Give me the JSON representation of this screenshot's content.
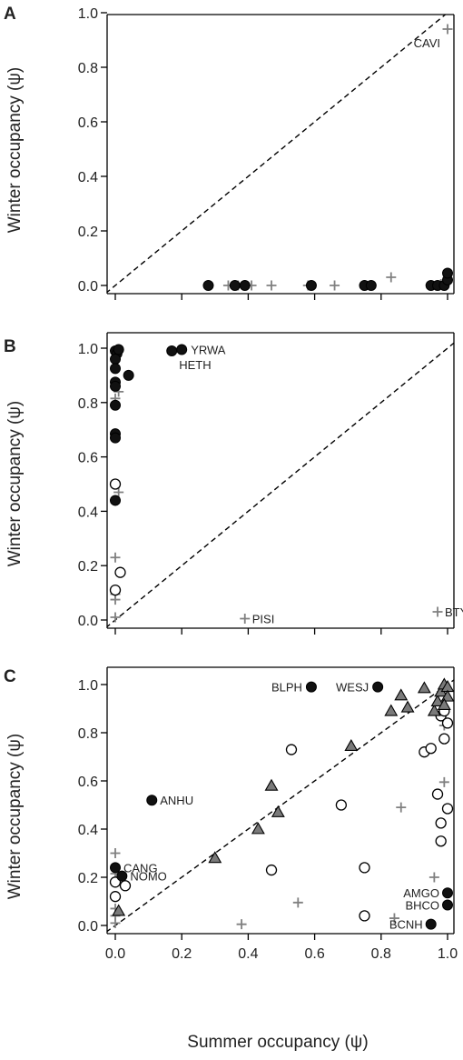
{
  "x_axis_label": "Summer occupancy (ψ)",
  "chart_data": [
    {
      "type": "scatter",
      "panel": "A",
      "xlabel": "",
      "ylabel": "Winter occupancy (ψ)",
      "xlim": [
        0,
        1
      ],
      "ylim": [
        0,
        1
      ],
      "xticks": [],
      "yticks": [
        "0.0",
        "0.2",
        "0.4",
        "0.6",
        "0.8",
        "1.0"
      ],
      "reference_line": "y = x (dashed)",
      "points": [
        {
          "x": 0.28,
          "y": 0.0,
          "m": "filled"
        },
        {
          "x": 0.36,
          "y": 0.0,
          "m": "filled"
        },
        {
          "x": 0.39,
          "y": 0.0,
          "m": "filled"
        },
        {
          "x": 0.59,
          "y": 0.0,
          "m": "filled"
        },
        {
          "x": 0.75,
          "y": 0.0,
          "m": "filled"
        },
        {
          "x": 0.77,
          "y": 0.0,
          "m": "filled"
        },
        {
          "x": 0.95,
          "y": 0.0,
          "m": "filled"
        },
        {
          "x": 0.97,
          "y": 0.0,
          "m": "filled"
        },
        {
          "x": 0.99,
          "y": 0.0,
          "m": "filled"
        },
        {
          "x": 1.0,
          "y": 0.02,
          "m": "filled"
        },
        {
          "x": 1.0,
          "y": 0.045,
          "m": "filled"
        },
        {
          "x": 0.34,
          "y": 0.0,
          "m": "cross"
        },
        {
          "x": 0.37,
          "y": 0.0,
          "m": "cross"
        },
        {
          "x": 0.41,
          "y": 0.0,
          "m": "cross"
        },
        {
          "x": 0.47,
          "y": 0.0,
          "m": "cross"
        },
        {
          "x": 0.58,
          "y": 0.0,
          "m": "cross"
        },
        {
          "x": 0.66,
          "y": 0.0,
          "m": "cross"
        },
        {
          "x": 0.83,
          "y": 0.03,
          "m": "cross"
        },
        {
          "x": 0.98,
          "y": 0.005,
          "m": "cross"
        },
        {
          "x": 1.0,
          "y": 0.94,
          "m": "cross",
          "label": "CAVI",
          "la": "end",
          "ldx": -8,
          "ldy": 20
        }
      ]
    },
    {
      "type": "scatter",
      "panel": "B",
      "xlabel": "",
      "ylabel": "Winter occupancy (ψ)",
      "xlim": [
        0,
        1
      ],
      "ylim": [
        0,
        1
      ],
      "xticks": [],
      "yticks": [
        "0.0",
        "0.2",
        "0.4",
        "0.6",
        "0.8",
        "1.0"
      ],
      "reference_line": "y = x (dashed)",
      "points": [
        {
          "x": 0.0,
          "y": 0.99,
          "m": "filled"
        },
        {
          "x": 0.005,
          "y": 0.98,
          "m": "filled"
        },
        {
          "x": 0.01,
          "y": 0.995,
          "m": "filled"
        },
        {
          "x": 0.0,
          "y": 0.96,
          "m": "filled"
        },
        {
          "x": 0.0,
          "y": 0.925,
          "m": "filled"
        },
        {
          "x": 0.0,
          "y": 0.875,
          "m": "filled"
        },
        {
          "x": 0.0,
          "y": 0.86,
          "m": "filled"
        },
        {
          "x": 0.04,
          "y": 0.9,
          "m": "filled"
        },
        {
          "x": 0.0,
          "y": 0.79,
          "m": "filled"
        },
        {
          "x": 0.0,
          "y": 0.685,
          "m": "filled"
        },
        {
          "x": 0.0,
          "y": 0.67,
          "m": "filled"
        },
        {
          "x": 0.0,
          "y": 0.44,
          "m": "filled"
        },
        {
          "x": 0.17,
          "y": 0.99,
          "m": "filled",
          "label": "HETH",
          "la": "start",
          "ldx": 8,
          "ldy": 20
        },
        {
          "x": 0.2,
          "y": 0.995,
          "m": "filled",
          "label": "YRWA",
          "la": "start",
          "ldx": 10,
          "ldy": 5
        },
        {
          "x": 0.0,
          "y": 0.5,
          "m": "open"
        },
        {
          "x": 0.0,
          "y": 0.11,
          "m": "open"
        },
        {
          "x": 0.015,
          "y": 0.175,
          "m": "open"
        },
        {
          "x": 0.01,
          "y": 0.84,
          "m": "cross"
        },
        {
          "x": 0.0,
          "y": 0.815,
          "m": "cross"
        },
        {
          "x": 0.01,
          "y": 0.47,
          "m": "cross"
        },
        {
          "x": 0.0,
          "y": 0.23,
          "m": "cross"
        },
        {
          "x": 0.0,
          "y": 0.095,
          "m": "cross"
        },
        {
          "x": 0.0,
          "y": 0.075,
          "m": "cross"
        },
        {
          "x": 0.0,
          "y": 0.01,
          "m": "cross"
        },
        {
          "x": 0.39,
          "y": 0.005,
          "m": "cross",
          "label": "PISI",
          "la": "start",
          "ldx": 8,
          "ldy": 5
        },
        {
          "x": 0.97,
          "y": 0.03,
          "m": "cross",
          "label": "BTYW",
          "la": "start",
          "ldx": 8,
          "ldy": 5
        }
      ]
    },
    {
      "type": "scatter",
      "panel": "C",
      "xlabel": "Summer occupancy (ψ)",
      "ylabel": "Winter occupancy (ψ)",
      "xlim": [
        0,
        1
      ],
      "ylim": [
        0,
        1
      ],
      "xticks": [
        "0.0",
        "0.2",
        "0.4",
        "0.6",
        "0.8",
        "1.0"
      ],
      "yticks": [
        "0.0",
        "0.2",
        "0.4",
        "0.6",
        "0.8",
        "1.0"
      ],
      "reference_line": "y = x (dashed)",
      "points": [
        {
          "x": 0.59,
          "y": 0.99,
          "m": "filled",
          "label": "BLPH",
          "la": "end",
          "ldx": -10,
          "ldy": 5
        },
        {
          "x": 0.79,
          "y": 0.99,
          "m": "filled",
          "label": "WESJ",
          "la": "end",
          "ldx": -10,
          "ldy": 5
        },
        {
          "x": 0.11,
          "y": 0.52,
          "m": "filled",
          "label": "ANHU",
          "la": "start",
          "ldx": 9,
          "ldy": 5
        },
        {
          "x": 0.0,
          "y": 0.24,
          "m": "filled",
          "label": "CANG",
          "la": "start",
          "ldx": 9,
          "ldy": 5
        },
        {
          "x": 0.02,
          "y": 0.205,
          "m": "filled",
          "label": "NOMO",
          "la": "start",
          "ldx": 9,
          "ldy": 5
        },
        {
          "x": 1.0,
          "y": 0.135,
          "m": "filled",
          "label": "AMGO",
          "la": "end",
          "ldx": -9,
          "ldy": 5
        },
        {
          "x": 1.0,
          "y": 0.085,
          "m": "filled",
          "label": "BHCO",
          "la": "end",
          "ldx": -9,
          "ldy": 5
        },
        {
          "x": 0.95,
          "y": 0.005,
          "m": "filled",
          "label": "BCNH",
          "la": "end",
          "ldx": -9,
          "ldy": 5
        },
        {
          "x": 0.53,
          "y": 0.73,
          "m": "open"
        },
        {
          "x": 0.68,
          "y": 0.5,
          "m": "open"
        },
        {
          "x": 0.47,
          "y": 0.23,
          "m": "open"
        },
        {
          "x": 0.75,
          "y": 0.24,
          "m": "open"
        },
        {
          "x": 0.75,
          "y": 0.04,
          "m": "open"
        },
        {
          "x": 0.93,
          "y": 0.72,
          "m": "open"
        },
        {
          "x": 0.95,
          "y": 0.735,
          "m": "open"
        },
        {
          "x": 0.99,
          "y": 0.775,
          "m": "open"
        },
        {
          "x": 0.97,
          "y": 0.545,
          "m": "open"
        },
        {
          "x": 1.0,
          "y": 0.485,
          "m": "open"
        },
        {
          "x": 0.98,
          "y": 0.425,
          "m": "open"
        },
        {
          "x": 0.98,
          "y": 0.35,
          "m": "open"
        },
        {
          "x": 0.98,
          "y": 0.87,
          "m": "open"
        },
        {
          "x": 0.99,
          "y": 0.89,
          "m": "open"
        },
        {
          "x": 1.0,
          "y": 0.84,
          "m": "open"
        },
        {
          "x": 0.0,
          "y": 0.18,
          "m": "open"
        },
        {
          "x": 0.03,
          "y": 0.165,
          "m": "open"
        },
        {
          "x": 0.0,
          "y": 0.12,
          "m": "open"
        },
        {
          "x": 0.01,
          "y": 0.06,
          "m": "triangle"
        },
        {
          "x": 0.3,
          "y": 0.28,
          "m": "triangle"
        },
        {
          "x": 0.43,
          "y": 0.4,
          "m": "triangle"
        },
        {
          "x": 0.47,
          "y": 0.58,
          "m": "triangle"
        },
        {
          "x": 0.49,
          "y": 0.47,
          "m": "triangle"
        },
        {
          "x": 0.71,
          "y": 0.745,
          "m": "triangle"
        },
        {
          "x": 0.83,
          "y": 0.89,
          "m": "triangle"
        },
        {
          "x": 0.86,
          "y": 0.955,
          "m": "triangle"
        },
        {
          "x": 0.88,
          "y": 0.905,
          "m": "triangle"
        },
        {
          "x": 0.93,
          "y": 0.985,
          "m": "triangle"
        },
        {
          "x": 0.96,
          "y": 0.89,
          "m": "triangle"
        },
        {
          "x": 0.97,
          "y": 0.93,
          "m": "triangle"
        },
        {
          "x": 0.98,
          "y": 0.97,
          "m": "triangle"
        },
        {
          "x": 0.99,
          "y": 1.0,
          "m": "triangle"
        },
        {
          "x": 1.0,
          "y": 0.99,
          "m": "triangle"
        },
        {
          "x": 1.0,
          "y": 0.95,
          "m": "triangle"
        },
        {
          "x": 0.99,
          "y": 0.915,
          "m": "triangle"
        },
        {
          "x": 0.0,
          "y": 0.3,
          "m": "cross"
        },
        {
          "x": 0.0,
          "y": 0.215,
          "m": "cross"
        },
        {
          "x": 0.0,
          "y": 0.07,
          "m": "cross"
        },
        {
          "x": 0.0,
          "y": 0.04,
          "m": "cross"
        },
        {
          "x": 0.0,
          "y": 0.01,
          "m": "cross"
        },
        {
          "x": 0.38,
          "y": 0.005,
          "m": "cross"
        },
        {
          "x": 0.55,
          "y": 0.095,
          "m": "cross"
        },
        {
          "x": 0.86,
          "y": 0.49,
          "m": "cross"
        },
        {
          "x": 0.96,
          "y": 0.2,
          "m": "cross"
        },
        {
          "x": 0.99,
          "y": 0.595,
          "m": "cross"
        },
        {
          "x": 0.99,
          "y": 0.83,
          "m": "cross"
        },
        {
          "x": 1.0,
          "y": 0.975,
          "m": "cross"
        },
        {
          "x": 0.98,
          "y": 0.87,
          "m": "cross"
        },
        {
          "x": 0.84,
          "y": 0.03,
          "m": "cross"
        }
      ]
    }
  ]
}
